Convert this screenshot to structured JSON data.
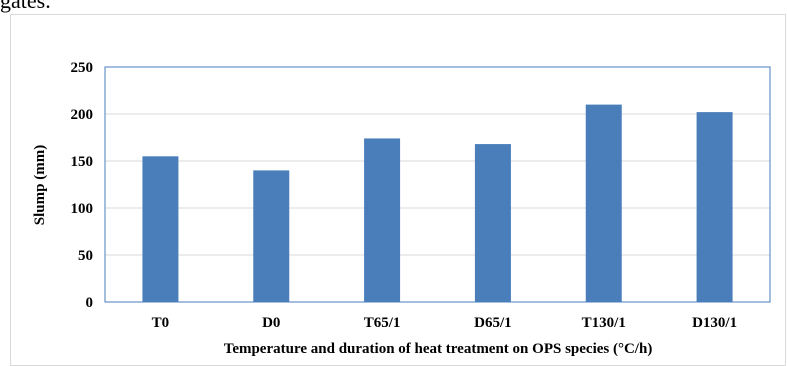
{
  "page": {
    "top_text": "gates."
  },
  "colors": {
    "bar": "#4a7ebb",
    "plot_border": "#4a7ebb",
    "grid": "#d9d9d9",
    "frame": "#d9d9d9"
  },
  "chart_data": {
    "type": "bar",
    "categories": [
      "T0",
      "D0",
      "T65/1",
      "D65/1",
      "T130/1",
      "D130/1"
    ],
    "values": [
      155,
      140,
      174,
      168,
      210,
      202
    ],
    "title": "",
    "xlabel": "Temperature and duration of heat treatment on OPS species (°C/h)",
    "ylabel": "Slump (mm)",
    "ylim": [
      0,
      250
    ],
    "yticks": [
      0,
      50,
      100,
      150,
      200,
      250
    ],
    "grid": true,
    "legend": "none"
  }
}
